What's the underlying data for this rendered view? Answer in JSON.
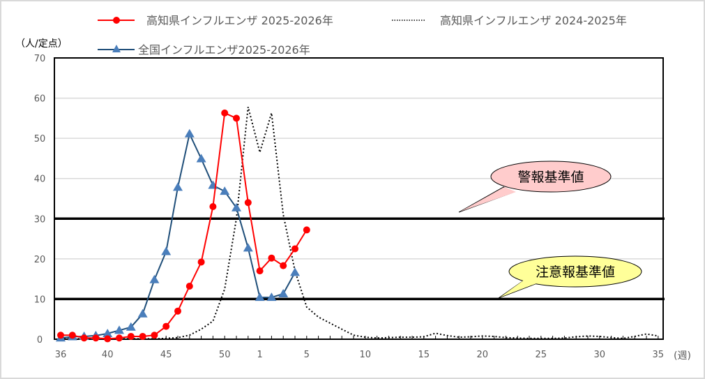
{
  "chart_data": {
    "type": "line",
    "title": "",
    "ylabel": "（人/定点）",
    "xlabel": "(週)",
    "ylim": [
      0,
      70
    ],
    "yticks": [
      0,
      10,
      20,
      30,
      40,
      50,
      60,
      70
    ],
    "grid": true,
    "legend_position": "top",
    "x_weeks": [
      36,
      37,
      38,
      39,
      40,
      41,
      42,
      43,
      44,
      45,
      46,
      47,
      48,
      49,
      50,
      51,
      52,
      1,
      2,
      3,
      4,
      5,
      6,
      7,
      8,
      9,
      10,
      11,
      12,
      13,
      14,
      15,
      16,
      17,
      18,
      19,
      20,
      21,
      22,
      23,
      24,
      25,
      26,
      27,
      28,
      29,
      30,
      31,
      32,
      33,
      34,
      35
    ],
    "x_tick_labels": [
      {
        "index": 0,
        "label": "36"
      },
      {
        "index": 4,
        "label": "40"
      },
      {
        "index": 9,
        "label": "45"
      },
      {
        "index": 14,
        "label": "50"
      },
      {
        "index": 17,
        "label": "1"
      },
      {
        "index": 21,
        "label": "5"
      },
      {
        "index": 26,
        "label": "10"
      },
      {
        "index": 31,
        "label": "15"
      },
      {
        "index": 36,
        "label": "20"
      },
      {
        "index": 41,
        "label": "25"
      },
      {
        "index": 46,
        "label": "30"
      },
      {
        "index": 51,
        "label": "35"
      }
    ],
    "series": [
      {
        "name": "高知県インフルエンザ 2025-2026年",
        "color": "#ff0000",
        "style": "solid-circle",
        "values": [
          1.0,
          1.0,
          0.3,
          0.3,
          0.1,
          0.3,
          0.7,
          0.7,
          1.0,
          3.2,
          7.0,
          13.2,
          19.2,
          33.0,
          56.3,
          55.0,
          34.0,
          17.0,
          20.2,
          18.3,
          22.5,
          27.2
        ]
      },
      {
        "name": "全国インフルエンザ2025-2026年",
        "color": "#1f4e79",
        "marker_color": "#4a7ebb",
        "style": "solid-triangle",
        "values": [
          0.3,
          0.6,
          0.7,
          0.9,
          1.4,
          2.2,
          3.0,
          6.3,
          14.8,
          21.8,
          37.8,
          51.1,
          44.9,
          38.3,
          36.8,
          32.7,
          22.7,
          10.4,
          10.4,
          11.3,
          16.6
        ]
      },
      {
        "name": "高知県インフルエンザ 2024-2025年",
        "color": "#000000",
        "style": "dotted",
        "values": [
          0.1,
          0.1,
          0.1,
          0.1,
          0.1,
          0.1,
          0.1,
          0.1,
          0.1,
          0.2,
          0.4,
          1.0,
          2.5,
          4.5,
          12.5,
          30.0,
          57.8,
          46.5,
          56.3,
          31.0,
          17.0,
          8.0,
          5.5,
          4.0,
          2.5,
          1.0,
          0.5,
          0.3,
          0.4,
          0.5,
          0.5,
          0.6,
          1.5,
          0.9,
          0.5,
          0.6,
          0.8,
          0.7,
          0.4,
          0.3,
          0.2,
          0.2,
          0.2,
          0.3,
          0.6,
          0.8,
          0.7,
          0.4,
          0.2,
          0.7,
          1.3,
          0.8
        ]
      }
    ],
    "reference_lines": [
      {
        "name": "警報基準値",
        "value": 30,
        "callout_fill": "#ffcccc"
      },
      {
        "name": "注意報基準値",
        "value": 10,
        "callout_fill": "#ffff99"
      }
    ]
  },
  "legend": {
    "kochi_2025": "高知県インフルエンザ 2025-2026年",
    "kochi_2024": "高知県インフルエンザ 2024-2025年",
    "national_2025": "全国インフルエンザ2025-2026年"
  },
  "axis": {
    "y_unit": "（人/定点）",
    "x_unit": "(週)"
  },
  "callouts": {
    "alert": "警報基準値",
    "warning": "注意報基準値"
  }
}
